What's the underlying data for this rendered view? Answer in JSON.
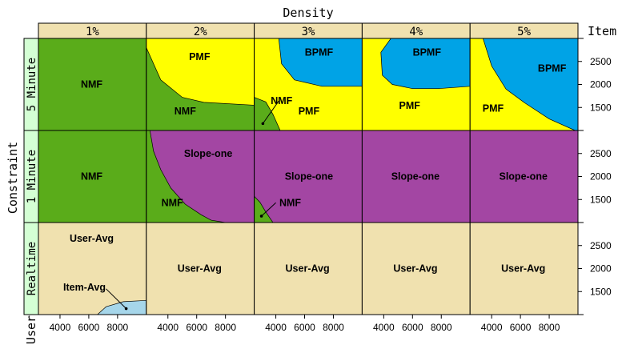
{
  "chart_data": {
    "type": "area",
    "title": "Density",
    "ylabel": "Constraint",
    "xlabel": "User",
    "right_axis_label": "Item",
    "columns": [
      "1%",
      "2%",
      "3%",
      "4%",
      "5%"
    ],
    "rows": [
      "5 Minute",
      "1 Minute",
      "Realtime"
    ],
    "x_ticks": [
      4000,
      6000,
      8000
    ],
    "y_ticks": [
      2500,
      2000,
      1500
    ],
    "xlim": [
      2500,
      10000
    ],
    "ylim": [
      1000,
      3000
    ],
    "colors": {
      "NMF": "#5aac1a",
      "PMF": "#ffff00",
      "BPMF": "#00a3e6",
      "Slope-one": "#a346a3",
      "User-Avg": "#f0e1af",
      "Item-Avg": "#a6d6ea",
      "strip": "#f0e1af",
      "row_strip": "#d4ffd4"
    },
    "panels": [
      {
        "row": 0,
        "col": 0,
        "base": "NMF",
        "regions": [],
        "labels": [
          {
            "text": "NMF",
            "x": 6200,
            "y": 2000
          }
        ]
      },
      {
        "row": 0,
        "col": 1,
        "base": "PMF",
        "regions": [
          {
            "method": "NMF",
            "points": [
              [
                2500,
                2800
              ],
              [
                3500,
                2100
              ],
              [
                5000,
                1720
              ],
              [
                6500,
                1610
              ],
              [
                10000,
                1550
              ],
              [
                10000,
                1000
              ],
              [
                2500,
                1000
              ]
            ]
          }
        ],
        "labels": [
          {
            "text": "PMF",
            "x": 6200,
            "y": 2600
          },
          {
            "text": "NMF",
            "x": 5200,
            "y": 1420
          }
        ]
      },
      {
        "row": 0,
        "col": 2,
        "base": "PMF",
        "regions": [
          {
            "method": "BPMF",
            "points": [
              [
                4200,
                3000
              ],
              [
                4400,
                2450
              ],
              [
                5300,
                2100
              ],
              [
                7200,
                1960
              ],
              [
                10000,
                1960
              ],
              [
                10000,
                3000
              ]
            ]
          },
          {
            "method": "NMF",
            "points": [
              [
                2500,
                1720
              ],
              [
                3300,
                1620
              ],
              [
                3800,
                1350
              ],
              [
                4300,
                1000
              ],
              [
                2500,
                1000
              ]
            ]
          }
        ],
        "labels": [
          {
            "text": "BPMF",
            "x": 7000,
            "y": 2700
          },
          {
            "text": "PMF",
            "x": 6300,
            "y": 1420
          },
          {
            "text": "NMF",
            "x": 4400,
            "y": 1640
          }
        ],
        "pointers": [
          {
            "from": [
              4200,
              1640
            ],
            "to": [
              3100,
              1150
            ]
          }
        ]
      },
      {
        "row": 0,
        "col": 3,
        "base": "PMF",
        "regions": [
          {
            "method": "BPMF",
            "points": [
              [
                4500,
                3000
              ],
              [
                3800,
                2700
              ],
              [
                3900,
                2200
              ],
              [
                4600,
                2000
              ],
              [
                6000,
                1910
              ],
              [
                7800,
                1910
              ],
              [
                10000,
                1960
              ],
              [
                10000,
                3000
              ]
            ]
          }
        ],
        "labels": [
          {
            "text": "BPMF",
            "x": 7000,
            "y": 2700
          },
          {
            "text": "PMF",
            "x": 5800,
            "y": 1540
          }
        ]
      },
      {
        "row": 0,
        "col": 4,
        "base": "PMF",
        "regions": [
          {
            "method": "BPMF",
            "points": [
              [
                3400,
                3000
              ],
              [
                4000,
                2400
              ],
              [
                5000,
                1900
              ],
              [
                6300,
                1600
              ],
              [
                8000,
                1250
              ],
              [
                9800,
                1000
              ],
              [
                10000,
                1000
              ],
              [
                10000,
                3000
              ]
            ]
          }
        ],
        "labels": [
          {
            "text": "BPMF",
            "x": 8200,
            "y": 2350
          },
          {
            "text": "PMF",
            "x": 4100,
            "y": 1480
          }
        ]
      },
      {
        "row": 1,
        "col": 0,
        "base": "NMF",
        "regions": [],
        "labels": [
          {
            "text": "NMF",
            "x": 6200,
            "y": 2000
          }
        ]
      },
      {
        "row": 1,
        "col": 1,
        "base": "Slope-one",
        "regions": [
          {
            "method": "NMF",
            "points": [
              [
                2500,
                3000
              ],
              [
                2750,
                3000
              ],
              [
                3000,
                2550
              ],
              [
                3500,
                2150
              ],
              [
                4200,
                1750
              ],
              [
                5200,
                1400
              ],
              [
                6300,
                1170
              ],
              [
                7000,
                1050
              ],
              [
                8000,
                1000
              ],
              [
                2500,
                1000
              ]
            ]
          }
        ],
        "labels": [
          {
            "text": "Slope-one",
            "x": 6800,
            "y": 2500
          },
          {
            "text": "NMF",
            "x": 4300,
            "y": 1430
          }
        ]
      },
      {
        "row": 1,
        "col": 2,
        "base": "Slope-one",
        "regions": [
          {
            "method": "NMF",
            "points": [
              [
                2500,
                1570
              ],
              [
                2900,
                1440
              ],
              [
                3300,
                1230
              ],
              [
                3800,
                1000
              ],
              [
                2500,
                1000
              ]
            ]
          }
        ],
        "labels": [
          {
            "text": "Slope-one",
            "x": 6300,
            "y": 2000
          },
          {
            "text": "NMF",
            "x": 5000,
            "y": 1430
          }
        ],
        "pointers": [
          {
            "from": [
              4000,
              1430
            ],
            "to": [
              3000,
              1140
            ]
          }
        ]
      },
      {
        "row": 1,
        "col": 3,
        "base": "Slope-one",
        "regions": [],
        "labels": [
          {
            "text": "Slope-one",
            "x": 6200,
            "y": 2000
          }
        ]
      },
      {
        "row": 1,
        "col": 4,
        "base": "Slope-one",
        "regions": [],
        "labels": [
          {
            "text": "Slope-one",
            "x": 6200,
            "y": 2000
          }
        ]
      },
      {
        "row": 2,
        "col": 0,
        "base": "User-Avg",
        "regions": [
          {
            "method": "Item-Avg",
            "points": [
              [
                6600,
                1000
              ],
              [
                7200,
                1170
              ],
              [
                8400,
                1280
              ],
              [
                9500,
                1300
              ],
              [
                10000,
                1310
              ],
              [
                10000,
                1000
              ]
            ]
          }
        ],
        "labels": [
          {
            "text": "User-Avg",
            "x": 6200,
            "y": 2650
          },
          {
            "text": "Item-Avg",
            "x": 5700,
            "y": 1590
          }
        ],
        "pointers": [
          {
            "from": [
              7200,
              1560
            ],
            "to": [
              8600,
              1130
            ]
          }
        ]
      },
      {
        "row": 2,
        "col": 1,
        "base": "User-Avg",
        "regions": [],
        "labels": [
          {
            "text": "User-Avg",
            "x": 6200,
            "y": 2000
          }
        ]
      },
      {
        "row": 2,
        "col": 2,
        "base": "User-Avg",
        "regions": [],
        "labels": [
          {
            "text": "User-Avg",
            "x": 6200,
            "y": 2000
          }
        ]
      },
      {
        "row": 2,
        "col": 3,
        "base": "User-Avg",
        "regions": [],
        "labels": [
          {
            "text": "User-Avg",
            "x": 6200,
            "y": 2000
          }
        ]
      },
      {
        "row": 2,
        "col": 4,
        "base": "User-Avg",
        "regions": [],
        "labels": [
          {
            "text": "User-Avg",
            "x": 6200,
            "y": 2000
          }
        ]
      }
    ]
  }
}
